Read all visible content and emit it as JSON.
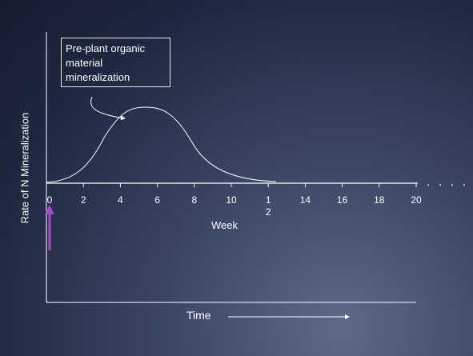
{
  "callout_text": "Pre-plant organic material mineralization",
  "y_axis_label": "Rate of N Mineralization",
  "x_axis_label": "Time",
  "week_label": "Week",
  "ellipsis": ". . . .",
  "ticks": [
    {
      "value": 0,
      "label": "0"
    },
    {
      "value": 2,
      "label": "2"
    },
    {
      "value": 4,
      "label": "4"
    },
    {
      "value": 6,
      "label": "6"
    },
    {
      "value": 8,
      "label": "8"
    },
    {
      "value": 10,
      "label": "10"
    },
    {
      "value": 12,
      "label": "1\n2"
    },
    {
      "value": 14,
      "label": "14"
    },
    {
      "value": 16,
      "label": "16"
    },
    {
      "value": 18,
      "label": "18"
    },
    {
      "value": 20,
      "label": "20"
    }
  ],
  "colors": {
    "line": "#ffffff",
    "marker_arrow": "#a64ac9"
  }
}
